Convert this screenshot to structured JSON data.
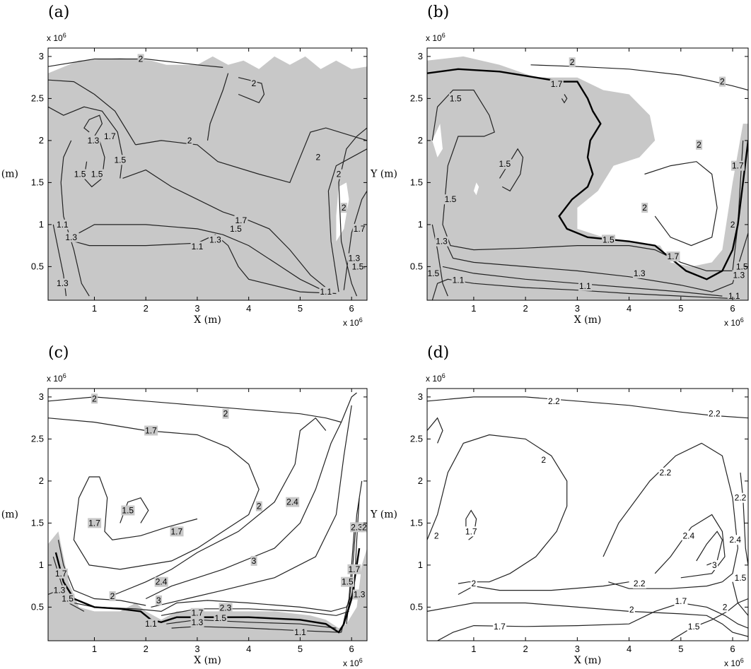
{
  "chart_data": [
    {
      "type": "contour",
      "panel": "(a)",
      "xlabel": "X (m)",
      "ylabel": "Y (m)",
      "x_multiplier": "x 10^6",
      "y_multiplier": "x 10^6",
      "xlim": [
        0.1,
        6.3
      ],
      "ylim": [
        0.1,
        3.1
      ],
      "xticks": [
        "1",
        "2",
        "3",
        "4",
        "5",
        "6"
      ],
      "yticks": [
        "0.5",
        "1",
        "1.5",
        "2",
        "2.5",
        "3"
      ],
      "shaded_region": "most of domain",
      "contour_levels": [
        "1.1",
        "1.3",
        "1.5",
        "1.7",
        "2"
      ],
      "contour_labels": [
        {
          "text": "2",
          "x": 1.9,
          "y": 2.97
        },
        {
          "text": "2",
          "x": 4.1,
          "y": 2.68
        },
        {
          "text": "2",
          "x": 2.85,
          "y": 2.0
        },
        {
          "text": "2",
          "x": 5.35,
          "y": 1.8
        },
        {
          "text": "2",
          "x": 5.75,
          "y": 1.6
        },
        {
          "text": "2",
          "x": 5.85,
          "y": 1.2
        },
        {
          "text": "1.7",
          "x": 1.3,
          "y": 2.05
        },
        {
          "text": "1.7",
          "x": 3.85,
          "y": 1.05
        },
        {
          "text": "1.7",
          "x": 6.15,
          "y": 0.95
        },
        {
          "text": "1.5",
          "x": 0.72,
          "y": 1.6
        },
        {
          "text": "1.5",
          "x": 1.05,
          "y": 1.6
        },
        {
          "text": "1.5",
          "x": 1.5,
          "y": 1.77
        },
        {
          "text": "1.5",
          "x": 3.75,
          "y": 0.95
        },
        {
          "text": "1.3",
          "x": 0.98,
          "y": 2.0
        },
        {
          "text": "1.3",
          "x": 3.35,
          "y": 0.82
        },
        {
          "text": "1.3",
          "x": 0.55,
          "y": 0.85
        },
        {
          "text": "1.3",
          "x": 0.38,
          "y": 0.3
        },
        {
          "text": "1.3",
          "x": 6.05,
          "y": 0.6
        },
        {
          "text": "1.1",
          "x": 0.38,
          "y": 1.0
        },
        {
          "text": "1.1",
          "x": 3.0,
          "y": 0.74
        },
        {
          "text": "1.1",
          "x": 5.5,
          "y": 0.2
        },
        {
          "text": ".5",
          "x": 6.2,
          "y": 0.5
        },
        {
          "text": "1.5",
          "x": 6.12,
          "y": 0.5
        }
      ]
    },
    {
      "type": "contour",
      "panel": "(b)",
      "xlabel": "X (m)",
      "ylabel": "Y (m)",
      "x_multiplier": "x 10^6",
      "y_multiplier": "x 10^6",
      "xlim": [
        0.1,
        6.3
      ],
      "ylim": [
        0.1,
        3.1
      ],
      "xticks": [
        "1",
        "2",
        "3",
        "4",
        "5",
        "6"
      ],
      "yticks": [
        "0.5",
        "1",
        "1.5",
        "2",
        "2.5",
        "3"
      ],
      "shaded_region": "western and southern domain",
      "bold_contour_level": "1.7",
      "contour_levels": [
        "1.1",
        "1.3",
        "1.5",
        "1.7",
        "2"
      ],
      "contour_labels": [
        {
          "text": "2",
          "x": 2.9,
          "y": 2.93
        },
        {
          "text": "2",
          "x": 5.8,
          "y": 2.7
        },
        {
          "text": "2",
          "x": 5.35,
          "y": 1.95
        },
        {
          "text": "2",
          "x": 4.3,
          "y": 1.2
        },
        {
          "text": "2",
          "x": 6.0,
          "y": 1.0
        },
        {
          "text": "1.7",
          "x": 2.6,
          "y": 2.67
        },
        {
          "text": "1.7",
          "x": 6.1,
          "y": 1.7
        },
        {
          "text": "1.7",
          "x": 4.85,
          "y": 0.62
        },
        {
          "text": "1.5",
          "x": 0.65,
          "y": 2.5
        },
        {
          "text": "1.5",
          "x": 1.6,
          "y": 1.72
        },
        {
          "text": "1.5",
          "x": 0.55,
          "y": 1.3
        },
        {
          "text": "1.5",
          "x": 3.6,
          "y": 0.82
        },
        {
          "text": "1.5",
          "x": 0.22,
          "y": 0.42
        },
        {
          "text": "1.5",
          "x": 6.18,
          "y": 0.5
        },
        {
          "text": "1.3",
          "x": 0.38,
          "y": 0.8
        },
        {
          "text": "1.3",
          "x": 4.2,
          "y": 0.42
        },
        {
          "text": "1.3",
          "x": 6.12,
          "y": 0.4
        },
        {
          "text": "1.1",
          "x": 0.7,
          "y": 0.34
        },
        {
          "text": "1.1",
          "x": 3.15,
          "y": 0.27
        },
        {
          "text": "1.1",
          "x": 6.03,
          "y": 0.15
        }
      ]
    },
    {
      "type": "contour",
      "panel": "(c)",
      "xlabel": "X (m)",
      "ylabel": "Y (m)",
      "x_multiplier": "x 10^6",
      "y_multiplier": "x 10^6",
      "xlim": [
        0.1,
        6.3
      ],
      "ylim": [
        0.1,
        3.1
      ],
      "xticks": [
        "1",
        "2",
        "3",
        "4",
        "5",
        "6"
      ],
      "yticks": [
        "0.5",
        "1",
        "1.5",
        "2",
        "2.5",
        "3"
      ],
      "shaded_region": "southern boundary strip",
      "contour_levels": [
        "1.1",
        "1.3",
        "1.5",
        "1.7",
        "2",
        "2.3",
        "2.4",
        "3"
      ],
      "contour_labels": [
        {
          "text": "2",
          "x": 1.0,
          "y": 2.98
        },
        {
          "text": "2",
          "x": 3.55,
          "y": 2.8
        },
        {
          "text": "1.7",
          "x": 2.1,
          "y": 2.6
        },
        {
          "text": "1.7",
          "x": 1.0,
          "y": 1.5
        },
        {
          "text": "1.5",
          "x": 1.65,
          "y": 1.65
        },
        {
          "text": "1.7",
          "x": 2.6,
          "y": 1.4
        },
        {
          "text": "2",
          "x": 4.2,
          "y": 1.7
        },
        {
          "text": "2.4",
          "x": 4.85,
          "y": 1.75
        },
        {
          "text": "3",
          "x": 4.1,
          "y": 1.05
        },
        {
          "text": "2.4",
          "x": 2.3,
          "y": 0.8
        },
        {
          "text": "2",
          "x": 1.35,
          "y": 0.63
        },
        {
          "text": "3",
          "x": 2.25,
          "y": 0.58
        },
        {
          "text": "2.3",
          "x": 6.1,
          "y": 1.45
        },
        {
          "text": "2",
          "x": 6.25,
          "y": 1.45
        },
        {
          "text": "1.7",
          "x": 6.05,
          "y": 0.95
        },
        {
          "text": "1.5",
          "x": 5.92,
          "y": 0.8
        },
        {
          "text": "1.3",
          "x": 6.15,
          "y": 0.65
        },
        {
          "text": "1.7",
          "x": 0.35,
          "y": 0.9
        },
        {
          "text": "1.3",
          "x": 0.32,
          "y": 0.7
        },
        {
          "text": "1.5",
          "x": 0.48,
          "y": 0.6
        },
        {
          "text": "1.7",
          "x": 3.0,
          "y": 0.43
        },
        {
          "text": "1.5",
          "x": 3.45,
          "y": 0.37
        },
        {
          "text": "2.3",
          "x": 3.55,
          "y": 0.49
        },
        {
          "text": "1.3",
          "x": 3.0,
          "y": 0.32
        },
        {
          "text": "1.1",
          "x": 2.1,
          "y": 0.3
        },
        {
          "text": "1.1",
          "x": 5.0,
          "y": 0.2
        }
      ]
    },
    {
      "type": "contour",
      "panel": "(d)",
      "xlabel": "X (m)",
      "ylabel": "Y (m)",
      "x_multiplier": "x 10^6",
      "y_multiplier": "x 10^6",
      "xlim": [
        0.1,
        6.3
      ],
      "ylim": [
        0.1,
        3.1
      ],
      "xticks": [
        "1",
        "2",
        "3",
        "4",
        "5",
        "6"
      ],
      "yticks": [
        "0.5",
        "1",
        "1.5",
        "2",
        "2.5",
        "3"
      ],
      "shaded_region": "none",
      "contour_levels": [
        "1.5",
        "1.7",
        "2",
        "2.2",
        "2.4",
        "3"
      ],
      "contour_labels": [
        {
          "text": "2.2",
          "x": 2.55,
          "y": 2.95
        },
        {
          "text": "2.2",
          "x": 5.65,
          "y": 2.8
        },
        {
          "text": "2",
          "x": 2.35,
          "y": 2.25
        },
        {
          "text": "2.2",
          "x": 4.7,
          "y": 2.1
        },
        {
          "text": "2.2",
          "x": 6.15,
          "y": 1.8
        },
        {
          "text": "2",
          "x": 0.28,
          "y": 1.35
        },
        {
          "text": "1.7",
          "x": 0.95,
          "y": 1.4
        },
        {
          "text": "2.4",
          "x": 5.15,
          "y": 1.35
        },
        {
          "text": "2.4",
          "x": 6.05,
          "y": 1.3
        },
        {
          "text": "3",
          "x": 5.65,
          "y": 1.0
        },
        {
          "text": "2",
          "x": 1.0,
          "y": 0.78
        },
        {
          "text": "2.2",
          "x": 4.2,
          "y": 0.78
        },
        {
          "text": "2",
          "x": 4.05,
          "y": 0.47
        },
        {
          "text": "1.7",
          "x": 1.5,
          "y": 0.27
        },
        {
          "text": "1.7",
          "x": 5.0,
          "y": 0.57
        },
        {
          "text": "1.5",
          "x": 5.25,
          "y": 0.27
        },
        {
          "text": "1.5",
          "x": 6.15,
          "y": 0.85
        },
        {
          "text": "2",
          "x": 5.85,
          "y": 0.5
        }
      ]
    }
  ]
}
